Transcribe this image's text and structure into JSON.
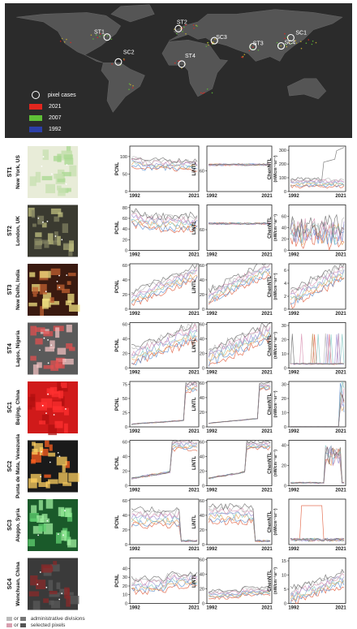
{
  "map": {
    "legend": [
      {
        "label": "pixel cases",
        "kind": "ring",
        "color": "#ffffff"
      },
      {
        "label": "2021",
        "kind": "swatch",
        "color": "#e2261e"
      },
      {
        "label": "2007",
        "kind": "swatch",
        "color": "#5fbf37"
      },
      {
        "label": "1992",
        "kind": "swatch",
        "color": "#2c3fa8"
      }
    ],
    "markers": [
      {
        "label": "ST1",
        "lon": -74.0,
        "lat": 40.7
      },
      {
        "label": "ST2",
        "lon": -0.1,
        "lat": 51.5
      },
      {
        "label": "SC3",
        "lon": 37.2,
        "lat": 36.2
      },
      {
        "label": "ST3",
        "lon": 77.2,
        "lat": 28.6
      },
      {
        "label": "SC4",
        "lon": 106.4,
        "lat": 29.5
      },
      {
        "label": "SC1",
        "lon": 116.4,
        "lat": 39.9
      },
      {
        "label": "SC2",
        "lon": -62.3,
        "lat": 9.1
      },
      {
        "label": "ST4",
        "lon": 3.4,
        "lat": 6.5
      }
    ]
  },
  "rows": [
    {
      "code": "ST1",
      "name": "New York, US",
      "thumb": "newyork",
      "pcnl": {
        "ylim": [
          0,
          130
        ],
        "ticks": [
          0,
          50,
          100
        ]
      },
      "lintl": {
        "ylim": [
          50,
          72
        ],
        "ticks": [
          60
        ]
      },
      "chen": {
        "ylim": [
          0,
          330
        ],
        "ticks": [
          0,
          100,
          200,
          300
        ]
      }
    },
    {
      "code": "ST2",
      "name": "London, UK",
      "thumb": "london",
      "pcnl": {
        "ylim": [
          0,
          85
        ],
        "ticks": [
          0,
          20,
          40,
          60,
          80
        ]
      },
      "lintl": {
        "ylim": [
          50,
          72
        ],
        "ticks": [
          60
        ]
      },
      "chen": {
        "ylim": [
          0,
          80
        ],
        "ticks": [
          0,
          20,
          40,
          60
        ]
      }
    },
    {
      "code": "ST3",
      "name": "New Delhi, India",
      "thumb": "delhi",
      "pcnl": {
        "ylim": [
          0,
          62
        ],
        "ticks": [
          0,
          20,
          40,
          60
        ]
      },
      "lintl": {
        "ylim": [
          0,
          62
        ],
        "ticks": [
          0,
          20,
          40,
          60
        ]
      },
      "chen": {
        "ylim": [
          0,
          7
        ],
        "ticks": [
          0,
          2,
          4,
          6
        ]
      }
    },
    {
      "code": "ST4",
      "name": "Lagos, Nigeria",
      "thumb": "lagos",
      "pcnl": {
        "ylim": [
          0,
          62
        ],
        "ticks": [
          0,
          20,
          40,
          60
        ]
      },
      "lintl": {
        "ylim": [
          0,
          62
        ],
        "ticks": [
          0,
          20,
          40,
          60
        ]
      },
      "chen": {
        "ylim": [
          0,
          32
        ],
        "ticks": [
          0,
          10,
          20,
          30
        ]
      }
    },
    {
      "code": "SC1",
      "name": "Beijing, China",
      "thumb": "beijing",
      "pcnl": {
        "ylim": [
          0,
          80
        ],
        "ticks": [
          0,
          25,
          50,
          75
        ]
      },
      "lintl": {
        "ylim": [
          0,
          62
        ],
        "ticks": [
          0,
          20,
          40,
          60
        ]
      },
      "chen": {
        "ylim": [
          0,
          32
        ],
        "ticks": [
          0,
          10,
          20,
          30
        ]
      }
    },
    {
      "code": "SC2",
      "name": "Punta de Mata, Venezuela",
      "thumb": "punta",
      "pcnl": {
        "ylim": [
          0,
          62
        ],
        "ticks": [
          0,
          20,
          40,
          60
        ]
      },
      "lintl": {
        "ylim": [
          0,
          62
        ],
        "ticks": [
          0,
          20,
          40,
          60
        ]
      },
      "chen": {
        "ylim": [
          0,
          45
        ],
        "ticks": [
          0,
          20,
          40
        ]
      }
    },
    {
      "code": "SC3",
      "name": "Aleppo, Syria",
      "thumb": "aleppo",
      "pcnl": {
        "ylim": [
          0,
          62
        ],
        "ticks": [
          0,
          20,
          40,
          60
        ]
      },
      "lintl": {
        "ylim": [
          0,
          62
        ],
        "ticks": [
          0,
          20,
          40,
          60
        ]
      },
      "chen": {
        "ylim": [
          0,
          140
        ],
        "ticks": []
      }
    },
    {
      "code": "SC4",
      "name": "Wenchuan, China",
      "thumb": "wenchuan",
      "pcnl": {
        "ylim": [
          0,
          52
        ],
        "ticks": [
          0,
          10,
          20,
          30,
          40
        ]
      },
      "lintl": {
        "ylim": [
          0,
          62
        ],
        "ticks": [
          0,
          20,
          40,
          60
        ]
      },
      "chen": {
        "ylim": [
          0,
          16
        ],
        "ticks": [
          0,
          5,
          10,
          15
        ]
      }
    }
  ],
  "columns": {
    "pcnl": "PCNL",
    "lintl": "LiNTL",
    "chen": "ChenNTL",
    "chen_unit": "(nW/cm⁻²sr⁻¹)"
  },
  "x_ticks": [
    "1992",
    "2021"
  ],
  "chart_data": {
    "type": "line",
    "x_range": [
      1992,
      2021
    ],
    "series_colors": [
      "#e05a3a",
      "#5a8fd0",
      "#e8a65a",
      "#7fc7c2",
      "#9e8fd6",
      "#d88fb0",
      "#b0b0b0",
      "#6a6a6a"
    ],
    "panels": [
      {
        "row": "ST1",
        "col": "PCNL",
        "shape": "flat_high",
        "level": 75,
        "spread": 25
      },
      {
        "row": "ST1",
        "col": "LiNTL",
        "shape": "flat_top",
        "level": 63,
        "spread": 1
      },
      {
        "row": "ST1",
        "col": "ChenNTL",
        "shape": "flat_mixed",
        "level": 60,
        "spread": 40
      },
      {
        "row": "ST2",
        "col": "PCNL",
        "shape": "flat_high",
        "level": 50,
        "spread": 25
      },
      {
        "row": "ST2",
        "col": "LiNTL",
        "shape": "flat_top",
        "level": 63,
        "spread": 1
      },
      {
        "row": "ST2",
        "col": "ChenNTL",
        "shape": "noisy",
        "level": 30,
        "spread": 20
      },
      {
        "row": "ST3",
        "col": "PCNL",
        "shape": "rising",
        "level": 35,
        "spread": 15
      },
      {
        "row": "ST3",
        "col": "LiNTL",
        "shape": "rising",
        "level": 40,
        "spread": 15
      },
      {
        "row": "ST3",
        "col": "ChenNTL",
        "shape": "rising",
        "level": 4,
        "spread": 2
      },
      {
        "row": "ST4",
        "col": "PCNL",
        "shape": "rising",
        "level": 35,
        "spread": 20
      },
      {
        "row": "ST4",
        "col": "LiNTL",
        "shape": "rising",
        "level": 35,
        "spread": 20
      },
      {
        "row": "ST4",
        "col": "ChenNTL",
        "shape": "spiky",
        "level": 3,
        "spread": 3
      },
      {
        "row": "SC1",
        "col": "PCNL",
        "shape": "late_jump",
        "level": 70,
        "spread": 10
      },
      {
        "row": "SC1",
        "col": "LiNTL",
        "shape": "late_jump",
        "level": 55,
        "spread": 5
      },
      {
        "row": "SC1",
        "col": "ChenNTL",
        "shape": "late_spike",
        "level": 28,
        "spread": 3
      },
      {
        "row": "SC2",
        "col": "PCNL",
        "shape": "step_up",
        "level": 55,
        "spread": 10
      },
      {
        "row": "SC2",
        "col": "LiNTL",
        "shape": "step_up",
        "level": 55,
        "spread": 8
      },
      {
        "row": "SC2",
        "col": "ChenNTL",
        "shape": "mid_peak",
        "level": 30,
        "spread": 10
      },
      {
        "row": "SC3",
        "col": "PCNL",
        "shape": "drop_end",
        "level": 35,
        "spread": 15
      },
      {
        "row": "SC3",
        "col": "LiNTL",
        "shape": "drop_end",
        "level": 40,
        "spread": 15
      },
      {
        "row": "SC3",
        "col": "ChenNTL",
        "shape": "box",
        "level": 120,
        "spread": 5
      },
      {
        "row": "SC4",
        "col": "PCNL",
        "shape": "flat_low",
        "level": 20,
        "spread": 12
      },
      {
        "row": "SC4",
        "col": "LiNTL",
        "shape": "flat_low",
        "level": 12,
        "spread": 8
      },
      {
        "row": "SC4",
        "col": "ChenNTL",
        "shape": "rising",
        "level": 6,
        "spread": 4
      }
    ]
  },
  "bottom_legend": {
    "line1": "administrative divisions",
    "line2": "selected pixels",
    "or1": "or",
    "or2": "or"
  }
}
